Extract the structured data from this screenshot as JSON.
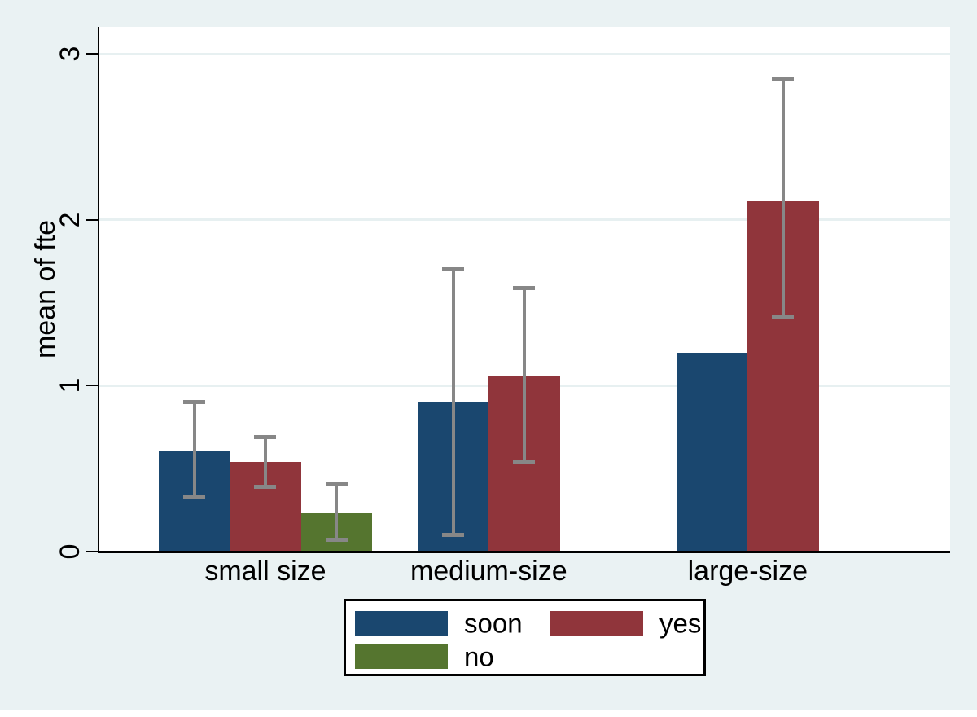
{
  "chart_data": {
    "type": "bar",
    "title": "",
    "xlabel": "",
    "ylabel": "mean of fte",
    "ylim": [
      0,
      3.16
    ],
    "yticks": [
      "0",
      "1",
      "2",
      "3"
    ],
    "grid": "horizontal",
    "legend_position": "bottom-center",
    "legend_columns": 2,
    "categories": [
      "small size",
      "medium-size",
      "large-size"
    ],
    "series": [
      {
        "name": "soon",
        "color": "#1a476f",
        "values": [
          0.61,
          0.9,
          1.2
        ],
        "ci_low": [
          0.33,
          0.1,
          null
        ],
        "ci_high": [
          0.9,
          1.7,
          null
        ]
      },
      {
        "name": "yes",
        "color": "#90353b",
        "values": [
          0.54,
          1.06,
          2.11
        ],
        "ci_low": [
          0.39,
          0.54,
          1.41
        ],
        "ci_high": [
          0.69,
          1.59,
          2.85
        ]
      },
      {
        "name": "no",
        "color": "#55752f",
        "values": [
          0.23,
          null,
          null
        ],
        "ci_low": [
          0.07,
          null,
          null
        ],
        "ci_high": [
          0.41,
          null,
          null
        ]
      }
    ]
  },
  "colors": {
    "figure_background": "#eaf2f3",
    "plot_background": "#ffffff",
    "axis": "#000000",
    "gridline": "#e7f0f1",
    "error_bar": "#878787",
    "text": "#000000",
    "legend_background": "#ffffff",
    "legend_border": "#000000"
  }
}
